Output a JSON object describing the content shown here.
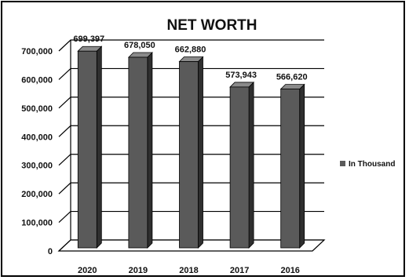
{
  "chart_data": {
    "type": "bar",
    "title": "NET WORTH",
    "categories": [
      "2020",
      "2019",
      "2018",
      "2017",
      "2016"
    ],
    "series": [
      {
        "name": "In Thousand",
        "values": [
          699397,
          678050,
          662880,
          573943,
          566620
        ]
      }
    ],
    "data_labels": [
      "699,397",
      "678,050",
      "662,880",
      "573,943",
      "566,620"
    ],
    "y_ticks": [
      "0",
      "100,000",
      "200,000",
      "300,000",
      "400,000",
      "500,000",
      "600,000",
      "700,000"
    ],
    "ylim": [
      0,
      700000
    ],
    "grid": true,
    "legend_position": "right",
    "bar_style": "3d-column",
    "colors": {
      "bar_front": "#5a5a5a",
      "bar_side": "#2f2f2f",
      "bar_top": "#8a8a8a",
      "grid": "#000000"
    }
  }
}
